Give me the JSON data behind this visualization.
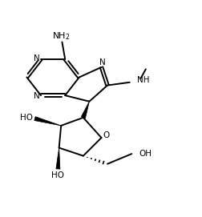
{
  "bg_color": "#ffffff",
  "line_color": "#000000",
  "line_width": 1.4,
  "figsize": [
    2.53,
    2.71
  ],
  "dpi": 100,
  "xlim": [
    0,
    10
  ],
  "ylim": [
    0,
    10.7
  ]
}
